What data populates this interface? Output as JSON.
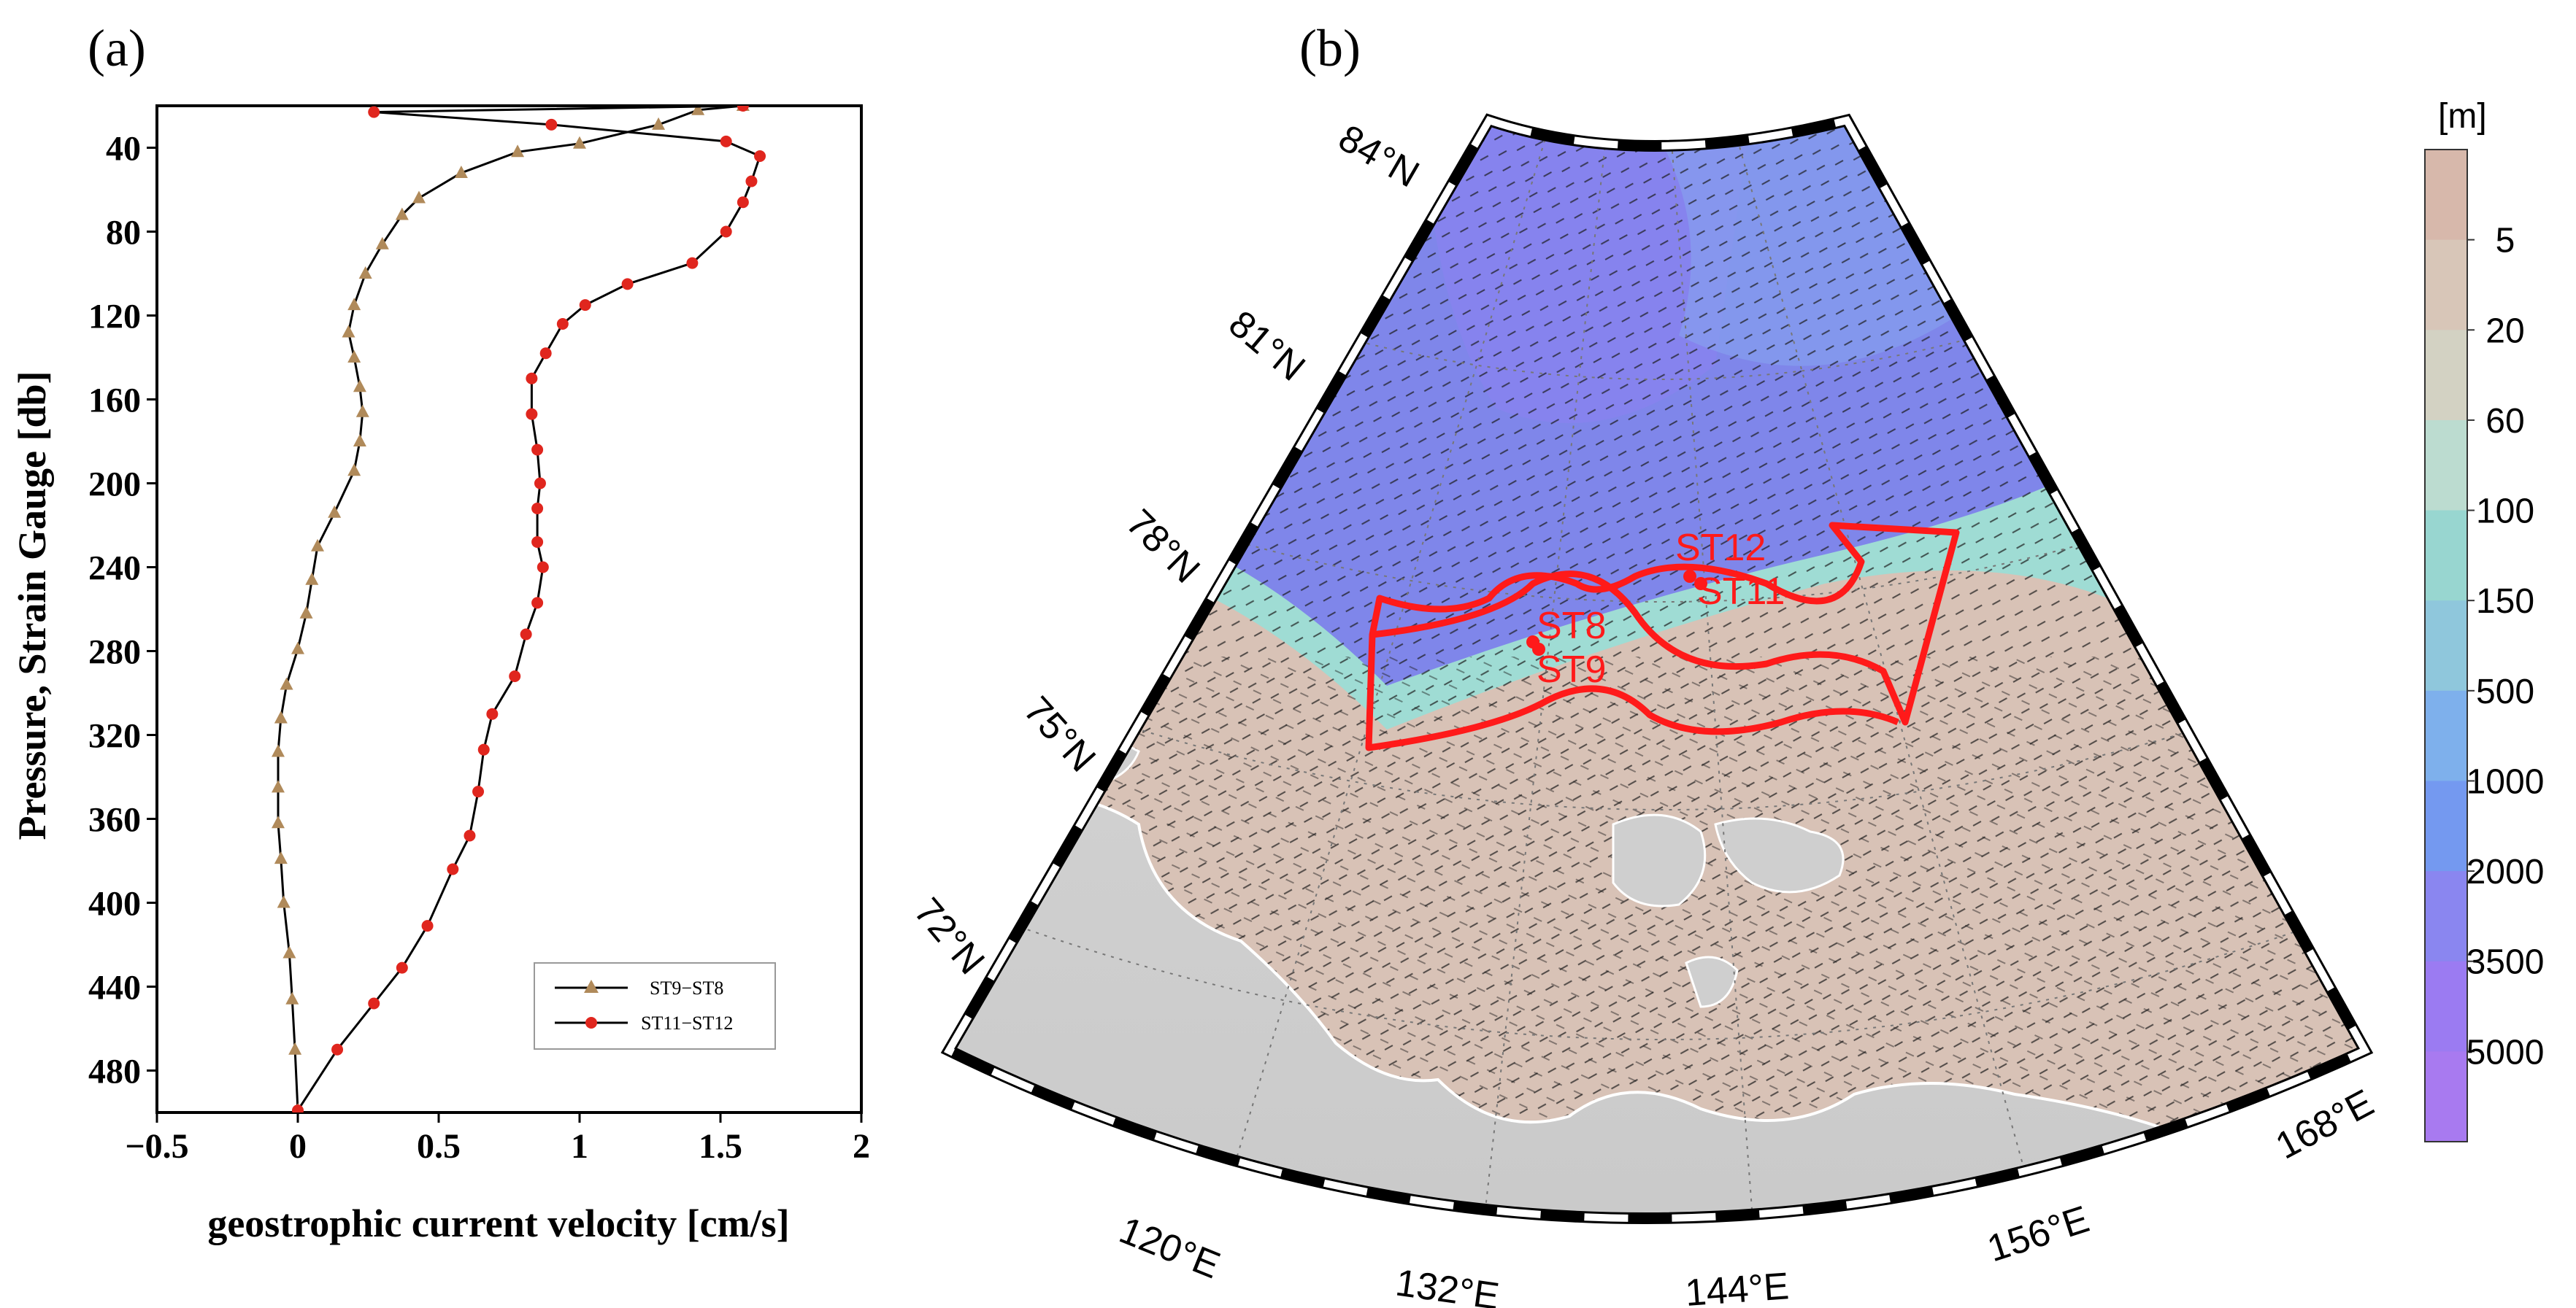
{
  "panel_a": {
    "label": "(a)",
    "legend": [
      "ST9−ST8",
      "ST11−ST12"
    ]
  },
  "panel_b": {
    "label": "(b)",
    "lat_labels": [
      "84°N",
      "81°N",
      "78°N",
      "75°N",
      "72°N"
    ],
    "lon_labels": [
      "120°E",
      "132°E",
      "144°E",
      "156°E",
      "168°E"
    ],
    "stations": [
      "ST12",
      "ST11",
      "ST8",
      "ST9"
    ],
    "station_color": "#ff1a1a",
    "colorbar": {
      "unit": "[m]",
      "ticks": [
        "5",
        "20",
        "60",
        "100",
        "150",
        "500",
        "1000",
        "2000",
        "3500",
        "5000"
      ],
      "colors": [
        "#d7b8ab",
        "#d8c6b8",
        "#d3d2c3",
        "#bcdcd0",
        "#98d6d0",
        "#8fc7dc",
        "#7eb0ec",
        "#7499f0",
        "#8a86f0",
        "#9b7bf2",
        "#a87af0"
      ]
    },
    "colors": {
      "land": "#cfcfcf",
      "deep": "#7f86ea",
      "shelf": "#d8c2b6",
      "slope": "#9fdcd4"
    }
  },
  "chart_data": [
    {
      "type": "line",
      "panel": "a",
      "xlabel": "geostrophic current velocity [cm/s]",
      "ylabel": "Pressure, Strain Gauge [db]",
      "xlim": [
        -0.5,
        2
      ],
      "ylim": [
        500,
        20
      ],
      "x_ticks": [
        "−0.5",
        "0",
        "0.5",
        "1",
        "1.5",
        "2"
      ],
      "y_ticks": [
        "40",
        "80",
        "120",
        "160",
        "200",
        "240",
        "280",
        "320",
        "360",
        "400",
        "440",
        "480"
      ],
      "legend_position": "lower-right",
      "grid": false,
      "series": [
        {
          "name": "ST9−ST8",
          "color": "#b08a5a",
          "marker": "triangle",
          "points": [
            [
              1.58,
              20
            ],
            [
              1.42,
              22
            ],
            [
              1.28,
              29
            ],
            [
              1.0,
              38
            ],
            [
              0.78,
              42
            ],
            [
              0.58,
              52
            ],
            [
              0.43,
              64
            ],
            [
              0.37,
              72
            ],
            [
              0.3,
              86
            ],
            [
              0.24,
              100
            ],
            [
              0.2,
              115
            ],
            [
              0.18,
              128
            ],
            [
              0.2,
              140
            ],
            [
              0.22,
              154
            ],
            [
              0.23,
              166
            ],
            [
              0.22,
              180
            ],
            [
              0.2,
              194
            ],
            [
              0.13,
              214
            ],
            [
              0.07,
              230
            ],
            [
              0.05,
              246
            ],
            [
              0.03,
              262
            ],
            [
              0.0,
              279
            ],
            [
              -0.04,
              296
            ],
            [
              -0.06,
              312
            ],
            [
              -0.07,
              328
            ],
            [
              -0.07,
              345
            ],
            [
              -0.07,
              362
            ],
            [
              -0.06,
              379
            ],
            [
              -0.05,
              400
            ],
            [
              -0.03,
              424
            ],
            [
              -0.02,
              446
            ],
            [
              -0.01,
              470
            ],
            [
              0.0,
              499
            ]
          ]
        },
        {
          "name": "ST11−ST12",
          "color": "#e0261e",
          "marker": "circle",
          "points": [
            [
              1.58,
              20
            ],
            [
              0.27,
              23
            ],
            [
              0.9,
              29
            ],
            [
              1.52,
              37
            ],
            [
              1.64,
              44
            ],
            [
              1.61,
              56
            ],
            [
              1.58,
              66
            ],
            [
              1.52,
              80
            ],
            [
              1.4,
              95
            ],
            [
              1.17,
              105
            ],
            [
              1.02,
              115
            ],
            [
              0.94,
              124
            ],
            [
              0.88,
              138
            ],
            [
              0.83,
              150
            ],
            [
              0.83,
              167
            ],
            [
              0.85,
              184
            ],
            [
              0.86,
              200
            ],
            [
              0.85,
              212
            ],
            [
              0.85,
              228
            ],
            [
              0.87,
              240
            ],
            [
              0.85,
              257
            ],
            [
              0.81,
              272
            ],
            [
              0.77,
              292
            ],
            [
              0.69,
              310
            ],
            [
              0.66,
              327
            ],
            [
              0.64,
              347
            ],
            [
              0.61,
              368
            ],
            [
              0.55,
              384
            ],
            [
              0.46,
              411
            ],
            [
              0.37,
              431
            ],
            [
              0.27,
              448
            ],
            [
              0.14,
              470
            ],
            [
              0.0,
              499
            ]
          ]
        }
      ]
    }
  ]
}
